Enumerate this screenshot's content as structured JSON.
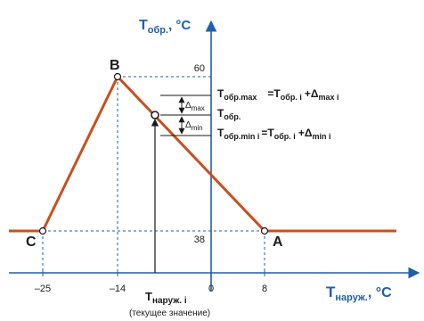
{
  "y_axis": {
    "T": "T",
    "sub": "обр.",
    "unit": ", °C"
  },
  "x_axis": {
    "T": "T",
    "sub": "наруж.",
    "unit": ", °C"
  },
  "points": {
    "B": "B",
    "C": "C",
    "A": "A"
  },
  "ticks_x": [
    "–25",
    "–14",
    "0",
    "8"
  ],
  "ticks_y": [
    "60",
    "38"
  ],
  "current": {
    "T": "T",
    "sub": "наруж. i",
    "note": "(текущее значение)"
  },
  "delta": {
    "sym": "Δ",
    "max": "max",
    "min": "min"
  },
  "eqs": {
    "row1_T": "T",
    "row1_sub": "обр.max",
    "row1_rhs": "=T",
    "row1_rhs_sub": "обр. i",
    "row1_plus": "+Δ",
    "row1_plus_sub": "max i",
    "row2_T": "T",
    "row2_sub": "обр.",
    "row3_T": "T",
    "row3_sub": "обр.min i",
    "row3_rhs": "=T",
    "row3_rhs_sub": "обр. i",
    "row3_plus": "+Δ",
    "row3_plus_sub": "min i"
  },
  "colors": {
    "line": "#c8501e",
    "axis": "#1f5faa",
    "guide": "#1f5faa",
    "text": "#1a1a1a"
  }
}
